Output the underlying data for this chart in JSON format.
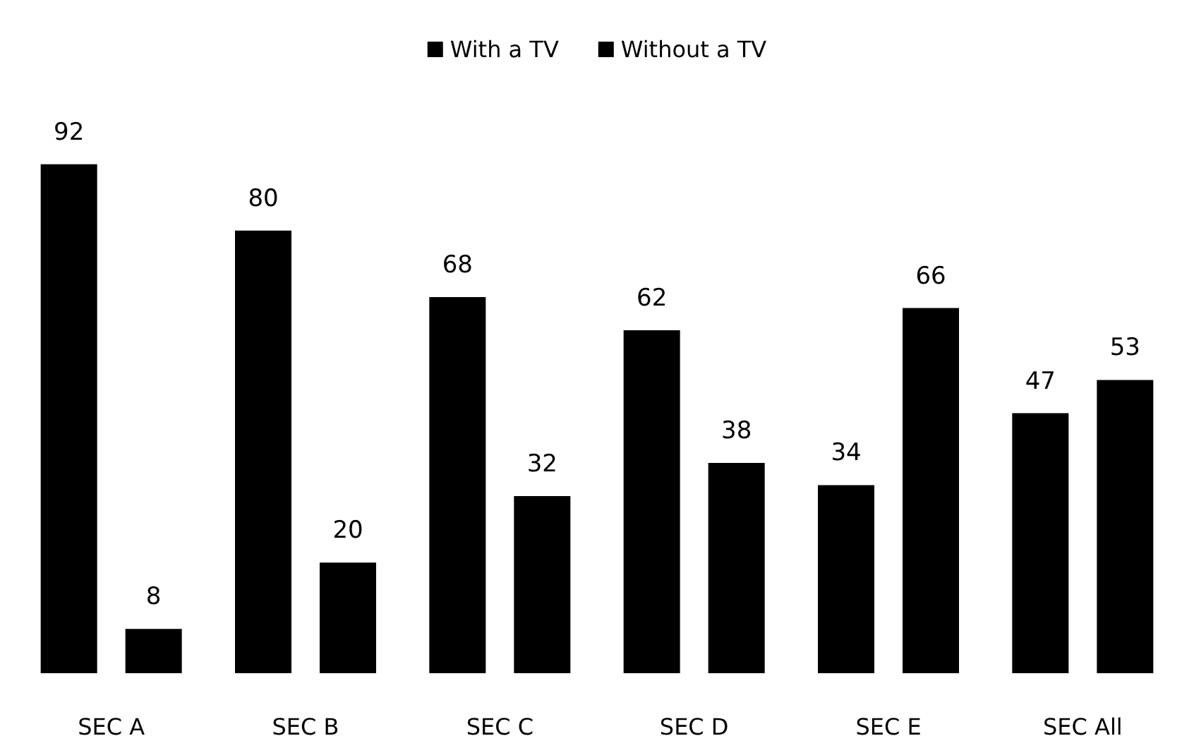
{
  "chart_data": {
    "type": "bar",
    "categories": [
      "SEC A",
      "SEC B",
      "SEC C",
      "SEC D",
      "SEC E",
      "SEC All"
    ],
    "series": [
      {
        "name": "With a TV",
        "color": "#000000",
        "values": [
          92,
          80,
          68,
          62,
          34,
          47
        ]
      },
      {
        "name": "Without a TV",
        "color": "#000000",
        "values": [
          8,
          20,
          32,
          38,
          66,
          53
        ]
      }
    ],
    "data_labels": true,
    "legend": "top"
  }
}
